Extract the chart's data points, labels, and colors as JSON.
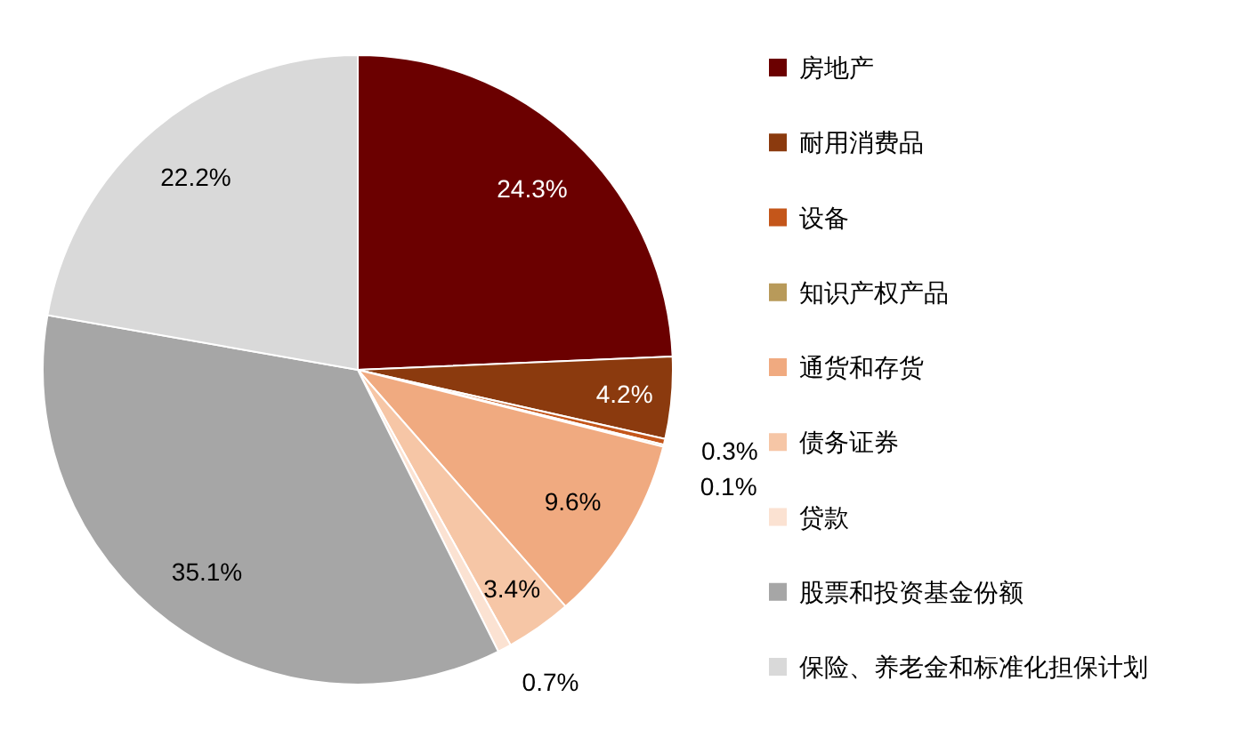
{
  "chart_data": {
    "type": "pie",
    "categories": [
      "房地产",
      "耐用消费品",
      "设备",
      "知识产权产品",
      "通货和存货",
      "债务证券",
      "贷款",
      "股票和投资基金份额",
      "保险、养老金和标准化担保计划"
    ],
    "values": [
      24.3,
      4.2,
      0.3,
      0.1,
      9.6,
      3.4,
      0.7,
      35.1,
      22.2
    ],
    "colors": [
      "#6b0000",
      "#8b3a0e",
      "#c4561a",
      "#b89a5a",
      "#f0aa80",
      "#f6c6a6",
      "#fbe2d2",
      "#a6a6a6",
      "#d9d9d9"
    ],
    "value_labels": [
      "24.3%",
      "4.2%",
      "0.3%",
      "0.1%",
      "9.6%",
      "3.4%",
      "0.7%",
      "35.1%",
      "22.2%"
    ],
    "legend": "right"
  }
}
